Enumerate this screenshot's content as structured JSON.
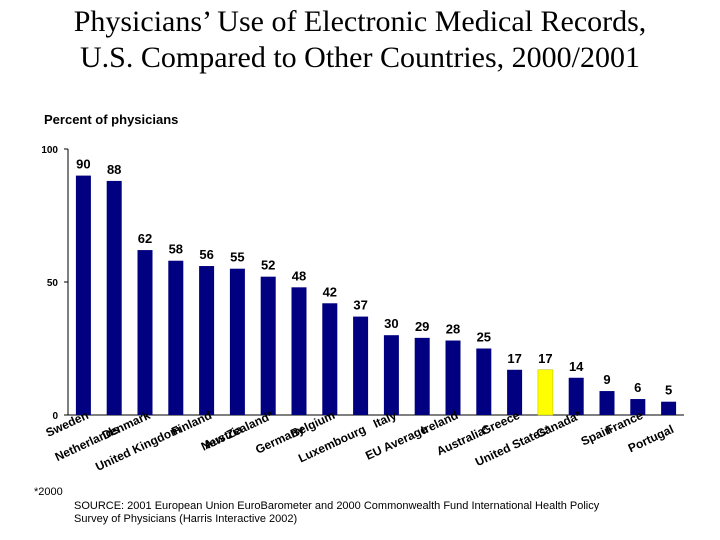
{
  "title": {
    "line1": "Physicians’ Use of Electronic Medical Records,",
    "line2": "U.S. Compared to Other Countries, 2000/2001"
  },
  "footnote": "*2000",
  "source": {
    "line1": "SOURCE: 2001 European Union EuroBarometer and 2000 Commonwealth Fund International Health Policy",
    "line2": "Survey of Physicians (Harris Interactive 2002)"
  },
  "colors": {
    "bar": "#000080",
    "highlight": "#FFFF00"
  },
  "chart_data": {
    "type": "bar",
    "ylabel": "Percent of physicians",
    "xlabel": "",
    "ylim": [
      0,
      100
    ],
    "yticks": [
      "0",
      "50",
      "100"
    ],
    "ytick_values": [
      0,
      50,
      100
    ],
    "grid": false,
    "categories": [
      "Sweden",
      "Netherlands",
      "Denmark",
      "United Kingdom",
      "Finland",
      "Austria",
      "New Zealand*",
      "Germany",
      "Belgium",
      "Luxembourg",
      "Italy",
      "EU Average",
      "Ireland",
      "Australia*",
      "Greece",
      "United States*",
      "Canada*",
      "Spain",
      "France",
      "Portugal"
    ],
    "values": [
      90,
      88,
      62,
      58,
      56,
      55,
      52,
      48,
      42,
      37,
      30,
      29,
      28,
      25,
      17,
      17,
      14,
      9,
      6,
      5
    ],
    "highlight_category": "United States*"
  }
}
